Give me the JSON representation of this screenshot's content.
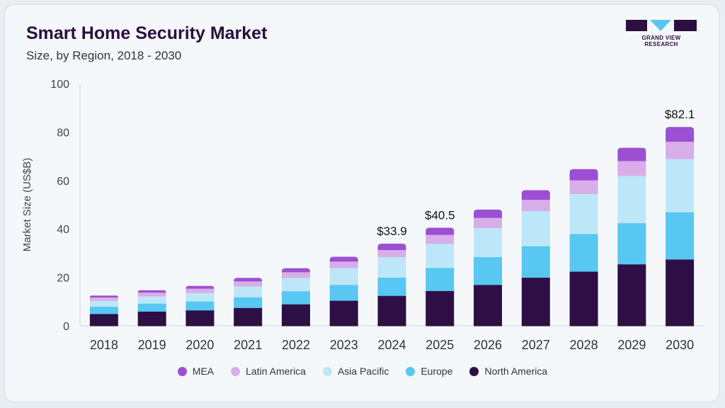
{
  "header": {
    "title": "Smart Home Security Market",
    "subtitle": "Size, by Region, 2018 - 2030"
  },
  "logo": {
    "text": "GRAND VIEW RESEARCH",
    "colors": {
      "dark": "#2b0f3f",
      "accent": "#58c6ef"
    }
  },
  "chart_data": {
    "type": "bar",
    "stacked": true,
    "categories": [
      "2018",
      "2019",
      "2020",
      "2021",
      "2022",
      "2023",
      "2024",
      "2025",
      "2026",
      "2027",
      "2028",
      "2029",
      "2030"
    ],
    "series": [
      {
        "name": "North America",
        "color": "#2e0f45",
        "values": [
          5.0,
          6.0,
          6.5,
          7.5,
          9.0,
          10.5,
          12.5,
          14.5,
          17.0,
          20.0,
          22.5,
          25.5,
          27.5
        ]
      },
      {
        "name": "Europe",
        "color": "#58c7f2",
        "values": [
          3.0,
          3.3,
          3.7,
          4.4,
          5.4,
          6.5,
          7.5,
          9.5,
          11.5,
          13.0,
          15.5,
          17.0,
          19.5
        ]
      },
      {
        "name": "Asia Pacific",
        "color": "#bde7f8",
        "values": [
          2.5,
          3.0,
          3.5,
          4.5,
          5.5,
          7.0,
          8.5,
          10.0,
          12.0,
          14.5,
          16.5,
          19.5,
          22.0
        ]
      },
      {
        "name": "Latin America",
        "color": "#d8aee9",
        "values": [
          1.2,
          1.4,
          1.6,
          1.9,
          2.2,
          2.5,
          2.8,
          3.5,
          4.0,
          4.5,
          5.5,
          6.0,
          7.0
        ]
      },
      {
        "name": "MEA",
        "color": "#9c4fd3",
        "values": [
          0.8,
          1.0,
          1.2,
          1.5,
          1.7,
          2.0,
          2.6,
          3.0,
          3.5,
          4.0,
          4.7,
          5.5,
          6.1
        ]
      }
    ],
    "annotations": [
      {
        "category": "2024",
        "text": "$33.9"
      },
      {
        "category": "2025",
        "text": "$40.5"
      },
      {
        "category": "2030",
        "text": "$82.1"
      }
    ],
    "xlabel": "",
    "ylabel": "Market Size (US$B)",
    "ylim": [
      0,
      100
    ],
    "yticks": [
      0,
      20,
      40,
      60,
      80,
      100
    ],
    "grid": false,
    "legend_position": "bottom-center"
  }
}
